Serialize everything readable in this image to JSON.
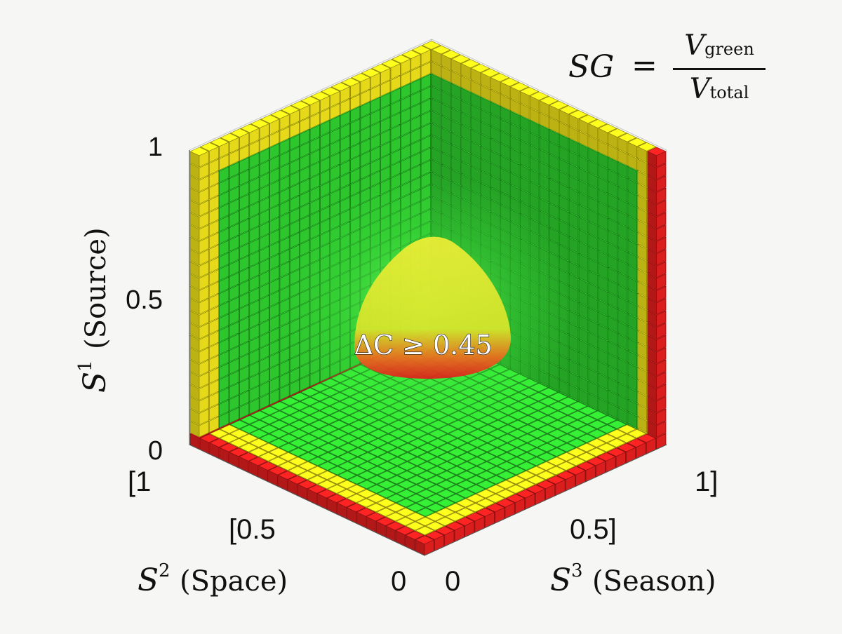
{
  "chart_data": {
    "type": "3d-voxel",
    "formula": {
      "lhs": "SG",
      "eq": "=",
      "numerator": "V",
      "numerator_sub": "green",
      "denominator": "V",
      "denominator_sub": "total"
    },
    "axes": {
      "vertical": {
        "symbol": "S",
        "superscript": "1",
        "name": "(Source)",
        "range": [
          0,
          1
        ],
        "ticks": [
          "0",
          "0.5",
          "1"
        ]
      },
      "left": {
        "symbol": "S",
        "superscript": "2",
        "name": "(Space)",
        "range": [
          0,
          1
        ],
        "ticks": [
          "0",
          "[0.5",
          "[1"
        ]
      },
      "right": {
        "symbol": "S",
        "superscript": "3",
        "name": "(Season)",
        "range": [
          0,
          1
        ],
        "ticks": [
          "0",
          "0.5]",
          "1]"
        ]
      }
    },
    "voxel_classes": [
      {
        "name": "green",
        "color": "#2fd12f",
        "region": "interior"
      },
      {
        "name": "yellow",
        "color": "#f2e41a",
        "region": "outer shell"
      },
      {
        "name": "red",
        "color": "#e51f1f",
        "region": "bottom and right edges"
      }
    ],
    "isosurface": {
      "label": "ΔC ≥ 0.45",
      "color_top": "#e7e92a",
      "color_bottom": "#e02020",
      "center": [
        0.5,
        0.5,
        0.35
      ]
    },
    "grid_cells_per_axis": 24
  }
}
